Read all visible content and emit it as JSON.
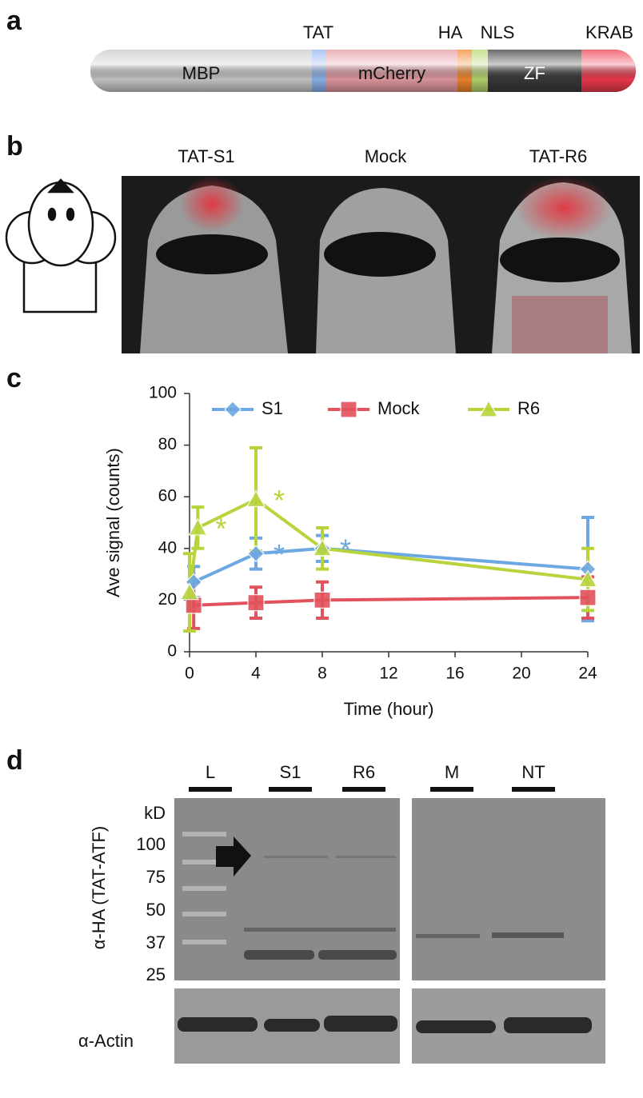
{
  "panel_a": {
    "letter": "a",
    "segments": [
      {
        "label": "MBP",
        "color": "#c8c8c8"
      },
      {
        "label": "TAT",
        "color": "#8fb4ef"
      },
      {
        "label": "mCherry",
        "color": "#e39aa2"
      },
      {
        "label": "HA",
        "color": "#f2872e"
      },
      {
        "label": "NLS",
        "color": "#b7d66e"
      },
      {
        "label": "ZF",
        "color": "#3a3a3a"
      },
      {
        "label": "KRAB",
        "color": "#ee3a4e"
      }
    ]
  },
  "panel_b": {
    "letter": "b",
    "labels": [
      "TAT-S1",
      "Mock",
      "TAT-R6"
    ]
  },
  "chart_data": {
    "letter": "c",
    "type": "line",
    "xlabel": "Time (hour)",
    "ylabel": "Ave signal (counts)",
    "xlim": [
      0,
      24
    ],
    "xticks": [
      0,
      4,
      8,
      12,
      16,
      20,
      24
    ],
    "ylim": [
      0,
      100
    ],
    "yticks": [
      0,
      20,
      40,
      60,
      80,
      100
    ],
    "series": [
      {
        "name": "S1",
        "color": "#6ea8e2",
        "marker": "diamond",
        "x": [
          0.25,
          4,
          8,
          24
        ],
        "values": [
          27,
          38,
          40,
          32
        ],
        "errors": [
          6,
          6,
          5,
          20
        ]
      },
      {
        "name": "Mock",
        "color": "#e2525c",
        "marker": "square",
        "x": [
          0.25,
          4,
          8,
          24
        ],
        "values": [
          18,
          19,
          20,
          21
        ],
        "errors": [
          9,
          6,
          7,
          8
        ]
      },
      {
        "name": "R6",
        "color": "#b7d43c",
        "marker": "triangle",
        "x": [
          0,
          0.5,
          4,
          8,
          24
        ],
        "values": [
          23,
          48,
          59,
          40,
          28
        ],
        "errors": [
          15,
          8,
          20,
          8,
          12
        ]
      }
    ],
    "annotations": [
      {
        "text": "*",
        "series": 2,
        "point": 1
      },
      {
        "text": "*",
        "series": 2,
        "point": 2
      },
      {
        "text": "*",
        "series": 2,
        "point": 3
      },
      {
        "text": "*",
        "series": 0,
        "point": 1
      },
      {
        "text": "*",
        "series": 0,
        "point": 2
      }
    ]
  },
  "panel_d": {
    "letter": "d",
    "lanes": [
      "L",
      "S1",
      "R6",
      "M",
      "NT"
    ],
    "unit": "kD",
    "markers": [
      "100",
      "75",
      "50",
      "37",
      "25"
    ],
    "ylabel": "α-HA (TAT-ATF)",
    "actin_label": "α-Actin"
  }
}
